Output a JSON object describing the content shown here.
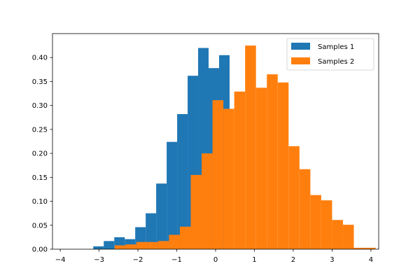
{
  "chart_data": {
    "type": "bar",
    "xlim": [
      -4.2,
      4.2
    ],
    "ylim": [
      0,
      0.45
    ],
    "xticks": [
      -4,
      -3,
      -2,
      -1,
      0,
      1,
      2,
      3,
      4
    ],
    "xtick_labels": [
      "−4",
      "−3",
      "−2",
      "−1",
      "0",
      "1",
      "2",
      "3",
      "4"
    ],
    "yticks": [
      0.0,
      0.05,
      0.1,
      0.15,
      0.2,
      0.25,
      0.3,
      0.35,
      0.4
    ],
    "ytick_labels": [
      "0.00",
      "0.05",
      "0.10",
      "0.15",
      "0.20",
      "0.25",
      "0.30",
      "0.35",
      "0.40"
    ],
    "grid": false,
    "legend_placement": "upper right",
    "series": [
      {
        "name": "Samples 1",
        "color": "#1f77b4",
        "bin_edges": [
          -3.15,
          -2.88,
          -2.61,
          -2.34,
          -2.07,
          -1.8,
          -1.53,
          -1.26,
          -0.99,
          -0.72,
          -0.45,
          -0.18,
          0.09,
          0.36
        ],
        "values": [
          0.006,
          0.017,
          0.025,
          0.021,
          0.046,
          0.075,
          0.137,
          0.224,
          0.282,
          0.362,
          0.42,
          0.378,
          0.405
        ]
      },
      {
        "name": "Samples 2",
        "color": "#ff7f0e",
        "bin_edges": [
          -2.6,
          -2.32,
          -2.04,
          -1.76,
          -1.48,
          -1.2,
          -0.92,
          -0.64,
          -0.36,
          -0.08,
          0.2,
          0.48,
          0.76,
          1.04,
          1.32,
          1.6,
          1.88,
          2.16,
          2.44,
          2.72,
          3.0,
          3.28,
          3.56,
          3.84,
          4.12
        ],
        "values": [
          0.008,
          0.01,
          0.015,
          0.015,
          0.017,
          0.03,
          0.047,
          0.155,
          0.2,
          0.311,
          0.293,
          0.329,
          0.425,
          0.337,
          0.365,
          0.348,
          0.215,
          0.167,
          0.113,
          0.102,
          0.061,
          0.051,
          0.003,
          0.003
        ]
      }
    ]
  }
}
